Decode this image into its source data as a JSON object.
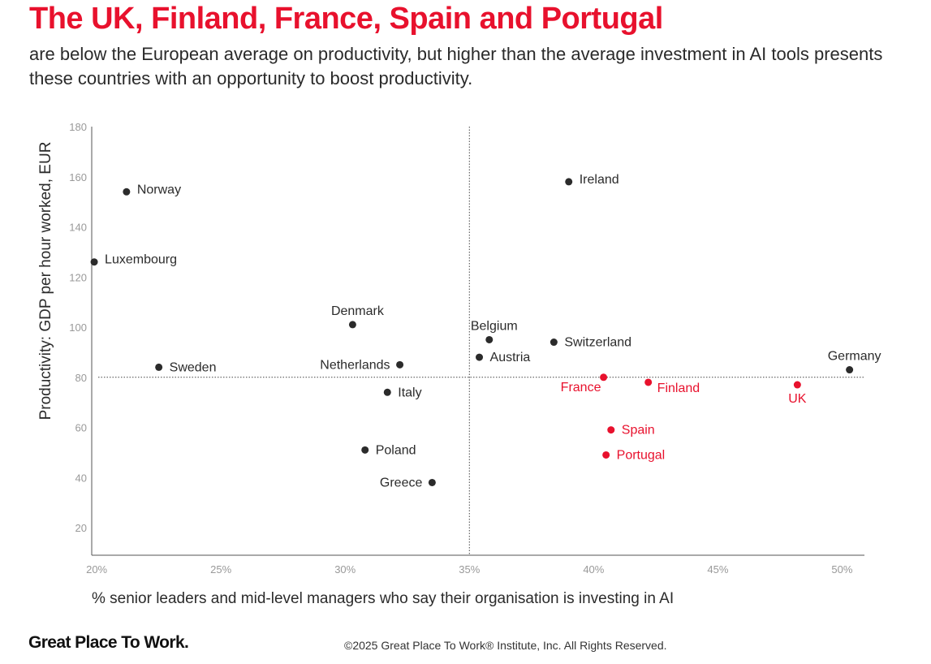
{
  "header": {
    "title": "The UK, Finland, France, Spain and Portugal",
    "subtitle": "are below the European average on productivity, but higher than the average investment in AI tools presents these countries with an opportunity to boost productivity."
  },
  "footer": {
    "logo_text": "Great Place To Work.",
    "copyright": "©2025 Great Place To Work® Institute, Inc. All Rights Reserved."
  },
  "colors": {
    "highlight": "#e8112d",
    "default": "#2b2b2b",
    "axis": "#555555",
    "tick": "#999999"
  },
  "chart_data": {
    "type": "scatter",
    "xlabel": "% senior leaders and mid-level managers who say their organisation is investing in AI",
    "ylabel": "Productivity: GDP per hour worked, EUR",
    "xlim": [
      19.8,
      50.9
    ],
    "ylim": [
      9,
      180
    ],
    "x_ticks": [
      {
        "value": 20,
        "label": "20%"
      },
      {
        "value": 25,
        "label": "25%"
      },
      {
        "value": 30,
        "label": "30%"
      },
      {
        "value": 35,
        "label": "35%"
      },
      {
        "value": 40,
        "label": "40%"
      },
      {
        "value": 45,
        "label": "45%"
      },
      {
        "value": 50,
        "label": "50%"
      }
    ],
    "y_ticks": [
      20,
      40,
      60,
      80,
      100,
      120,
      140,
      160,
      180
    ],
    "reference_lines": {
      "x_average": 35,
      "y_average": 80
    },
    "points": [
      {
        "name": "Norway",
        "x": 21.2,
        "y": 154,
        "highlight": false,
        "label_pos": "right-up"
      },
      {
        "name": "Luxembourg",
        "x": 19.9,
        "y": 126,
        "highlight": false,
        "label_pos": "right-up"
      },
      {
        "name": "Sweden",
        "x": 22.5,
        "y": 84,
        "highlight": false,
        "label_pos": "right"
      },
      {
        "name": "Denmark",
        "x": 30.3,
        "y": 101,
        "highlight": false,
        "label_pos": "above"
      },
      {
        "name": "Netherlands",
        "x": 32.2,
        "y": 85,
        "highlight": false,
        "label_pos": "left"
      },
      {
        "name": "Italy",
        "x": 31.7,
        "y": 74,
        "highlight": false,
        "label_pos": "right"
      },
      {
        "name": "Poland",
        "x": 30.8,
        "y": 51,
        "highlight": false,
        "label_pos": "right"
      },
      {
        "name": "Greece",
        "x": 33.5,
        "y": 38,
        "highlight": false,
        "label_pos": "left"
      },
      {
        "name": "Belgium",
        "x": 35.8,
        "y": 95,
        "highlight": false,
        "label_pos": "above"
      },
      {
        "name": "Austria",
        "x": 35.4,
        "y": 88,
        "highlight": false,
        "label_pos": "right"
      },
      {
        "name": "Switzerland",
        "x": 38.4,
        "y": 94,
        "highlight": false,
        "label_pos": "right"
      },
      {
        "name": "Ireland",
        "x": 39.0,
        "y": 158,
        "highlight": false,
        "label_pos": "right-up"
      },
      {
        "name": "Germany",
        "x": 50.3,
        "y": 83,
        "highlight": false,
        "label_pos": "above"
      },
      {
        "name": "France",
        "x": 40.4,
        "y": 80,
        "highlight": true,
        "label_pos": "below-left"
      },
      {
        "name": "Finland",
        "x": 42.2,
        "y": 78,
        "highlight": true,
        "label_pos": "right-down"
      },
      {
        "name": "UK",
        "x": 48.2,
        "y": 77,
        "highlight": true,
        "label_pos": "below"
      },
      {
        "name": "Spain",
        "x": 40.7,
        "y": 59,
        "highlight": true,
        "label_pos": "right"
      },
      {
        "name": "Portugal",
        "x": 40.5,
        "y": 49,
        "highlight": true,
        "label_pos": "right"
      }
    ]
  }
}
